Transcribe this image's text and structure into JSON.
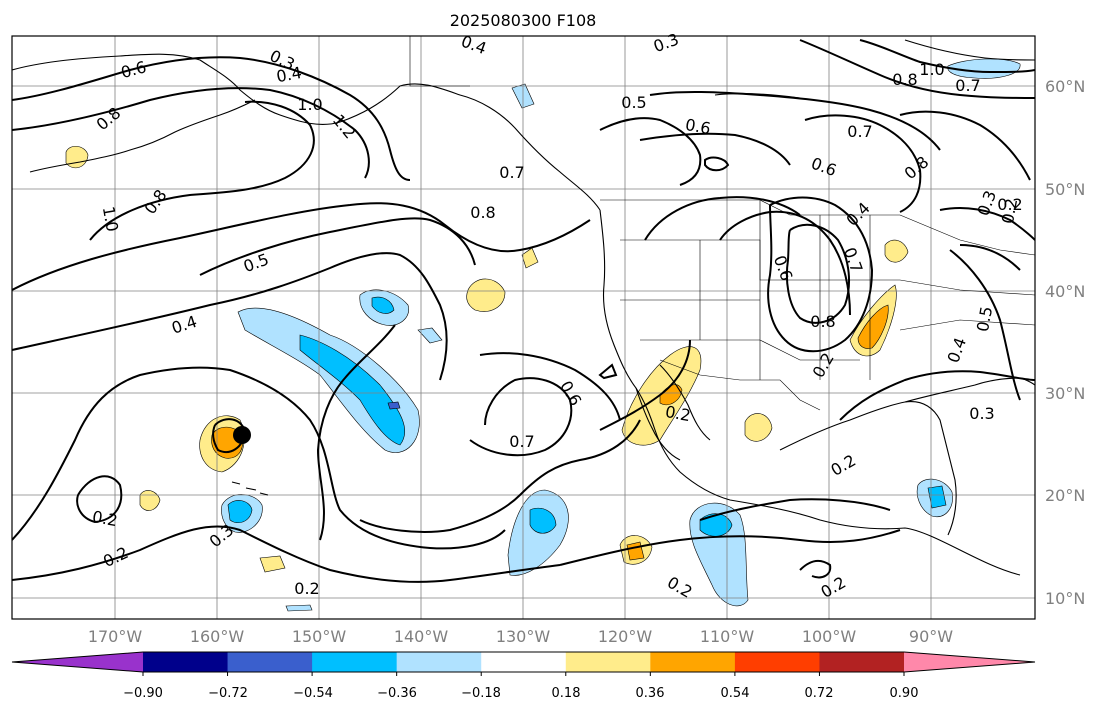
{
  "title": "2025080300 F108",
  "colors": {
    "colorbar": [
      "#9932cc",
      "#00008b",
      "#3a5fcd",
      "#00bfff",
      "#b0e2ff",
      "#ffffff",
      "#ffec8b",
      "#ffa500",
      "#ff3e00",
      "#b22222",
      "#ff88aa"
    ],
    "contour": "#000000",
    "grid": "#808080"
  },
  "lon_ticks": [
    "170°W",
    "160°W",
    "150°W",
    "140°W",
    "130°W",
    "120°W",
    "110°W",
    "100°W",
    "90°W"
  ],
  "lat_ticks": [
    "60°N",
    "50°N",
    "40°N",
    "30°N",
    "20°N",
    "10°N"
  ],
  "colorbar_ticks": [
    "−0.90",
    "−0.72",
    "−0.54",
    "−0.36",
    "−0.18",
    "0.18",
    "0.36",
    "0.54",
    "0.72",
    "0.90"
  ],
  "contour_labels": [
    {
      "t": "0.6",
      "a": -15
    },
    {
      "t": "0.3",
      "a": 25
    },
    {
      "t": "0.4",
      "a": -10
    },
    {
      "t": "0.8",
      "a": -40
    },
    {
      "t": "1.0",
      "a": 0
    },
    {
      "t": "1.2",
      "a": 50
    },
    {
      "t": "0.8",
      "a": -55
    },
    {
      "t": "1.0",
      "a": 80
    },
    {
      "t": "0.5",
      "a": -20
    },
    {
      "t": "0.4",
      "a": -18
    },
    {
      "t": "0.4",
      "a": 20
    },
    {
      "t": "0.3",
      "a": -20
    },
    {
      "t": "0.7",
      "a": 0
    },
    {
      "t": "0.8",
      "a": 0
    },
    {
      "t": "0.5",
      "a": 0
    },
    {
      "t": "0.6",
      "a": 10
    },
    {
      "t": "0.7",
      "a": 0
    },
    {
      "t": "0.6",
      "a": 20
    },
    {
      "t": "0.8",
      "a": -40
    },
    {
      "t": "0.8",
      "a": 0
    },
    {
      "t": "1.0",
      "a": 0
    },
    {
      "t": "0.7",
      "a": 0
    },
    {
      "t": "0.6",
      "a": 70
    },
    {
      "t": "0.7",
      "a": 70
    },
    {
      "t": "0.4",
      "a": -45
    },
    {
      "t": "0.3",
      "a": -70
    },
    {
      "t": "0.2",
      "a": -80
    },
    {
      "t": "0.8",
      "a": 0
    },
    {
      "t": "0.2",
      "a": -60
    },
    {
      "t": "0.5",
      "a": -80
    },
    {
      "t": "0.4",
      "a": -70
    },
    {
      "t": "0.6",
      "a": 60
    },
    {
      "t": "0.7",
      "a": 0
    },
    {
      "t": "0.2",
      "a": 10
    },
    {
      "t": "0.3",
      "a": -40
    },
    {
      "t": "0.3",
      "a": 0
    },
    {
      "t": "0.2",
      "a": 10
    },
    {
      "t": "0.2",
      "a": -25
    },
    {
      "t": "0.2",
      "a": 30
    },
    {
      "t": "0.2",
      "a": -30
    },
    {
      "t": "0.2",
      "a": 0
    },
    {
      "t": "0.2",
      "a": 0
    },
    {
      "t": "0.2",
      "a": -30
    }
  ]
}
